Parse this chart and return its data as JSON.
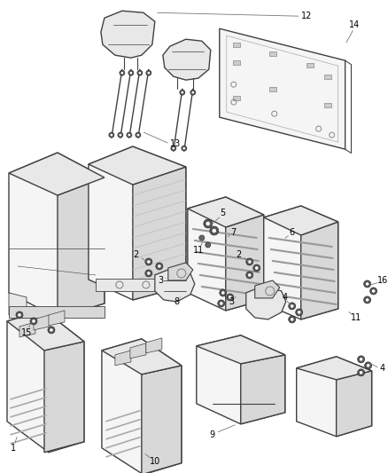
{
  "background_color": "#ffffff",
  "line_color": "#404040",
  "light_fill": "#f5f5f5",
  "mid_fill": "#e8e8e8",
  "dark_fill": "#d8d8d8",
  "hatch_fill": "#cccccc",
  "figsize": [
    4.38,
    5.33
  ],
  "dpi": 100,
  "label_fontsize": 7,
  "label_color": "#000000"
}
